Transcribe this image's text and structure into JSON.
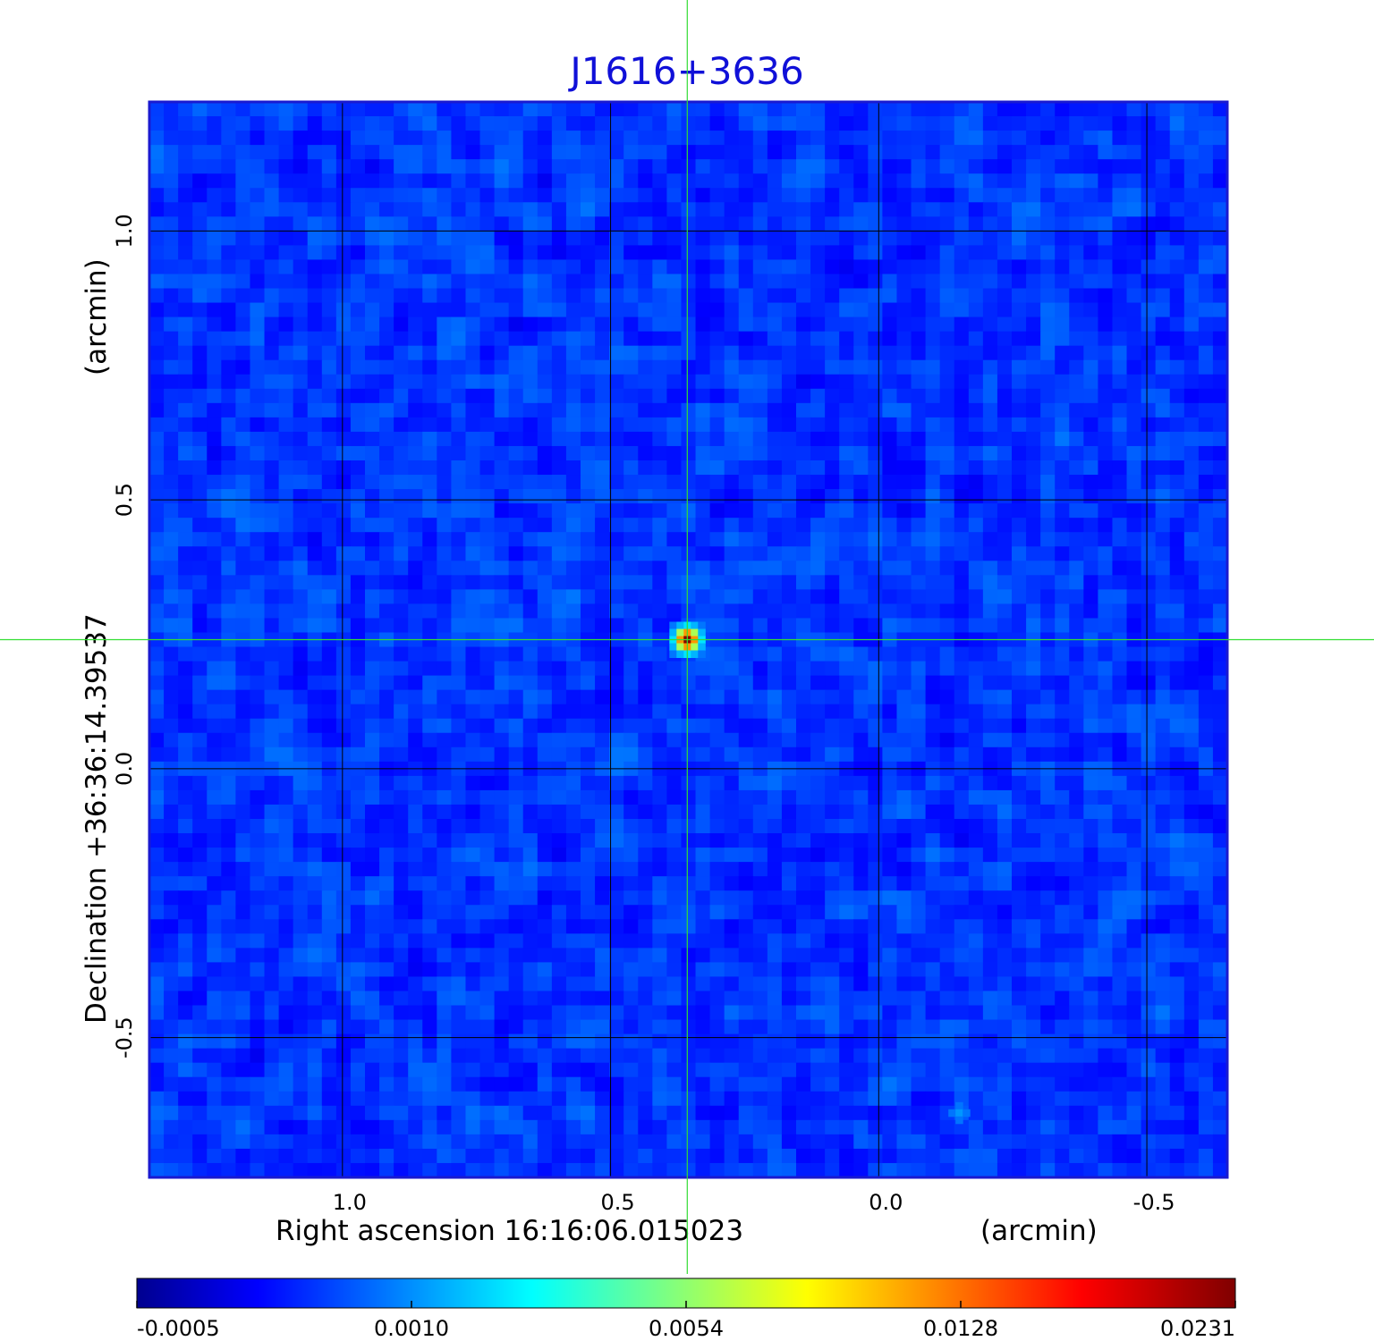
{
  "chart_data": {
    "type": "heatmap",
    "title": "J1616+3636",
    "title_color": "#1010d8",
    "colormap": "jet",
    "x_axis": {
      "label_left": "Right ascension  16:16:06.015023",
      "label_right": "(arcmin)",
      "range": [
        1.36,
        -0.65
      ],
      "ticks": [
        1.0,
        0.5,
        0.0,
        -0.5
      ],
      "tick_labels": [
        "1.0",
        "0.5",
        "0.0",
        "-0.5"
      ],
      "inverted": true
    },
    "y_axis": {
      "label_left": "Declination  +36:36:14.39537",
      "label_right": "(arcmin)",
      "range": [
        -0.76,
        1.24
      ],
      "ticks": [
        -0.5,
        0.0,
        0.5,
        1.0
      ],
      "tick_labels": [
        "-0.5",
        "0.0",
        "0.5",
        "1.0"
      ]
    },
    "grid": true,
    "grid_color": "#000000",
    "frame_color": "#1a1ad0",
    "crosshair": {
      "x": 0.357,
      "y": 0.24,
      "color": "#33dd33"
    },
    "sources": [
      {
        "x": 0.357,
        "y": 0.24,
        "peak": 0.0231
      },
      {
        "x": -0.15,
        "y": -0.64,
        "peak": 0.0036
      }
    ],
    "background_level": -0.0001,
    "colorbar": {
      "tick_labels": [
        "-0.0005",
        "0.0010",
        "0.0054",
        "0.0128",
        "0.0231"
      ],
      "min": -0.0005,
      "max": 0.0231
    }
  }
}
